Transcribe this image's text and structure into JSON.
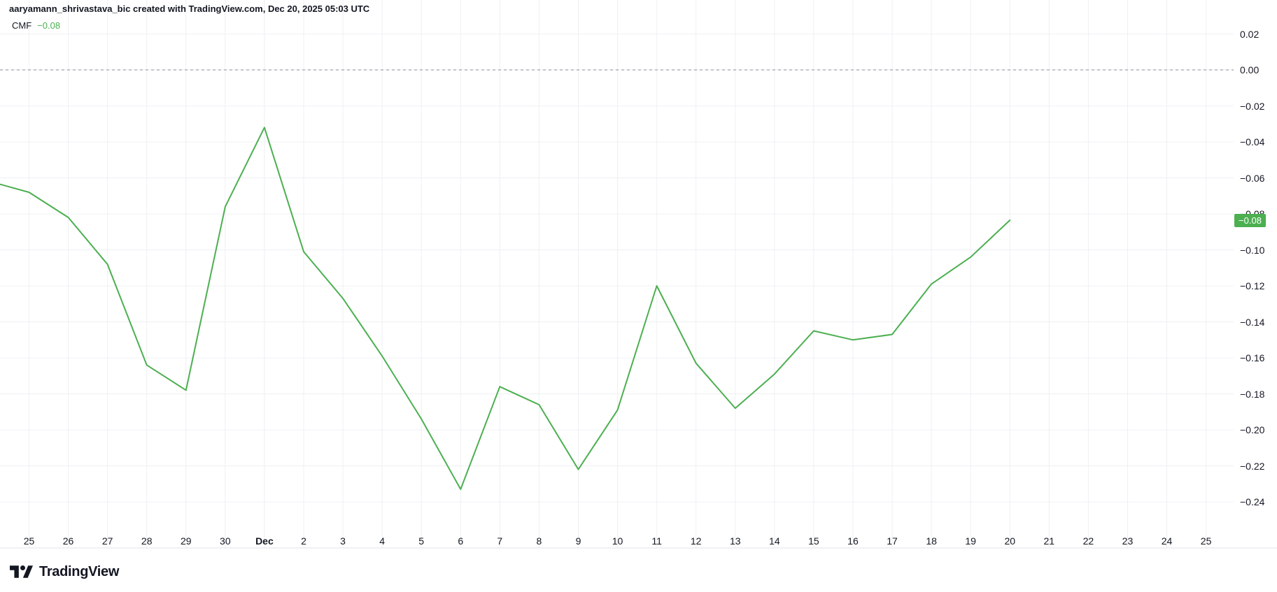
{
  "attribution": {
    "text": "aaryamann_shrivastava_bic created with TradingView.com, Dec 20, 2025 05:03 UTC"
  },
  "legend": {
    "indicator_name": "CMF",
    "current_value": "−0.08"
  },
  "watermark": {
    "brand_name": "TradingView",
    "logo_icon": "tradingview-logo"
  },
  "colors": {
    "background": "#ffffff",
    "line": "#4caf50",
    "badge_bg": "#4caf50",
    "badge_text": "#ffffff",
    "axis_text": "#131722",
    "grid": "#eef0f3",
    "axis_border": "#e0e3eb",
    "zero_line": "#8a8e99"
  },
  "chart_data": {
    "type": "line",
    "title": "CMF (Chaikin Money Flow) indicator",
    "grid": "on",
    "legend_position": "top-left",
    "line_color": "#4caf50",
    "y_axis": {
      "side": "right",
      "range_top": 0.039,
      "range_bottom": -0.256,
      "zero_line_style": "dashed",
      "ticks": [
        {
          "label": "0.02",
          "value": 0.02
        },
        {
          "label": "0.00",
          "value": 0.0
        },
        {
          "label": "−0.02",
          "value": -0.02
        },
        {
          "label": "−0.04",
          "value": -0.04
        },
        {
          "label": "−0.06",
          "value": -0.06
        },
        {
          "label": "−0.08",
          "value": -0.08
        },
        {
          "label": "−0.10",
          "value": -0.1
        },
        {
          "label": "−0.12",
          "value": -0.12
        },
        {
          "label": "−0.14",
          "value": -0.14
        },
        {
          "label": "−0.16",
          "value": -0.16
        },
        {
          "label": "−0.18",
          "value": -0.18
        },
        {
          "label": "−0.20",
          "value": -0.2
        },
        {
          "label": "−0.22",
          "value": -0.22
        },
        {
          "label": "−0.24",
          "value": -0.24
        }
      ]
    },
    "x_axis": {
      "ticks": [
        {
          "label": "25"
        },
        {
          "label": "26"
        },
        {
          "label": "27"
        },
        {
          "label": "28"
        },
        {
          "label": "29"
        },
        {
          "label": "30"
        },
        {
          "label": "Dec",
          "bold": true
        },
        {
          "label": "2"
        },
        {
          "label": "3"
        },
        {
          "label": "4"
        },
        {
          "label": "5"
        },
        {
          "label": "6"
        },
        {
          "label": "7"
        },
        {
          "label": "8"
        },
        {
          "label": "9"
        },
        {
          "label": "10"
        },
        {
          "label": "11"
        },
        {
          "label": "12"
        },
        {
          "label": "13"
        },
        {
          "label": "14"
        },
        {
          "label": "15"
        },
        {
          "label": "16"
        },
        {
          "label": "17"
        },
        {
          "label": "18"
        },
        {
          "label": "19"
        },
        {
          "label": "20"
        },
        {
          "label": "21"
        },
        {
          "label": "22"
        },
        {
          "label": "23"
        },
        {
          "label": "24"
        },
        {
          "label": "25"
        }
      ]
    },
    "series": [
      {
        "name": "CMF",
        "points": [
          {
            "date": "Nov 24",
            "value": -0.062,
            "clipped": true
          },
          {
            "date": "Nov 25",
            "value": -0.068
          },
          {
            "date": "Nov 26",
            "value": -0.082
          },
          {
            "date": "Nov 27",
            "value": -0.108
          },
          {
            "date": "Nov 28",
            "value": -0.164
          },
          {
            "date": "Nov 29",
            "value": -0.178
          },
          {
            "date": "Nov 30",
            "value": -0.076
          },
          {
            "date": "Dec 1",
            "value": -0.032
          },
          {
            "date": "Dec 2",
            "value": -0.101
          },
          {
            "date": "Dec 3",
            "value": -0.127
          },
          {
            "date": "Dec 4",
            "value": -0.159
          },
          {
            "date": "Dec 5",
            "value": -0.194
          },
          {
            "date": "Dec 6",
            "value": -0.233
          },
          {
            "date": "Dec 7",
            "value": -0.176
          },
          {
            "date": "Dec 8",
            "value": -0.186
          },
          {
            "date": "Dec 9",
            "value": -0.222
          },
          {
            "date": "Dec 10",
            "value": -0.189
          },
          {
            "date": "Dec 11",
            "value": -0.12
          },
          {
            "date": "Dec 12",
            "value": -0.163
          },
          {
            "date": "Dec 13",
            "value": -0.188
          },
          {
            "date": "Dec 14",
            "value": -0.169
          },
          {
            "date": "Dec 15",
            "value": -0.145
          },
          {
            "date": "Dec 16",
            "value": -0.15
          },
          {
            "date": "Dec 17",
            "value": -0.147
          },
          {
            "date": "Dec 18",
            "value": -0.119
          },
          {
            "date": "Dec 19",
            "value": -0.104
          },
          {
            "date": "Dec 20",
            "value": -0.0835
          }
        ]
      }
    ],
    "last_value_badge": {
      "text": "−0.08",
      "value": -0.0835
    }
  }
}
